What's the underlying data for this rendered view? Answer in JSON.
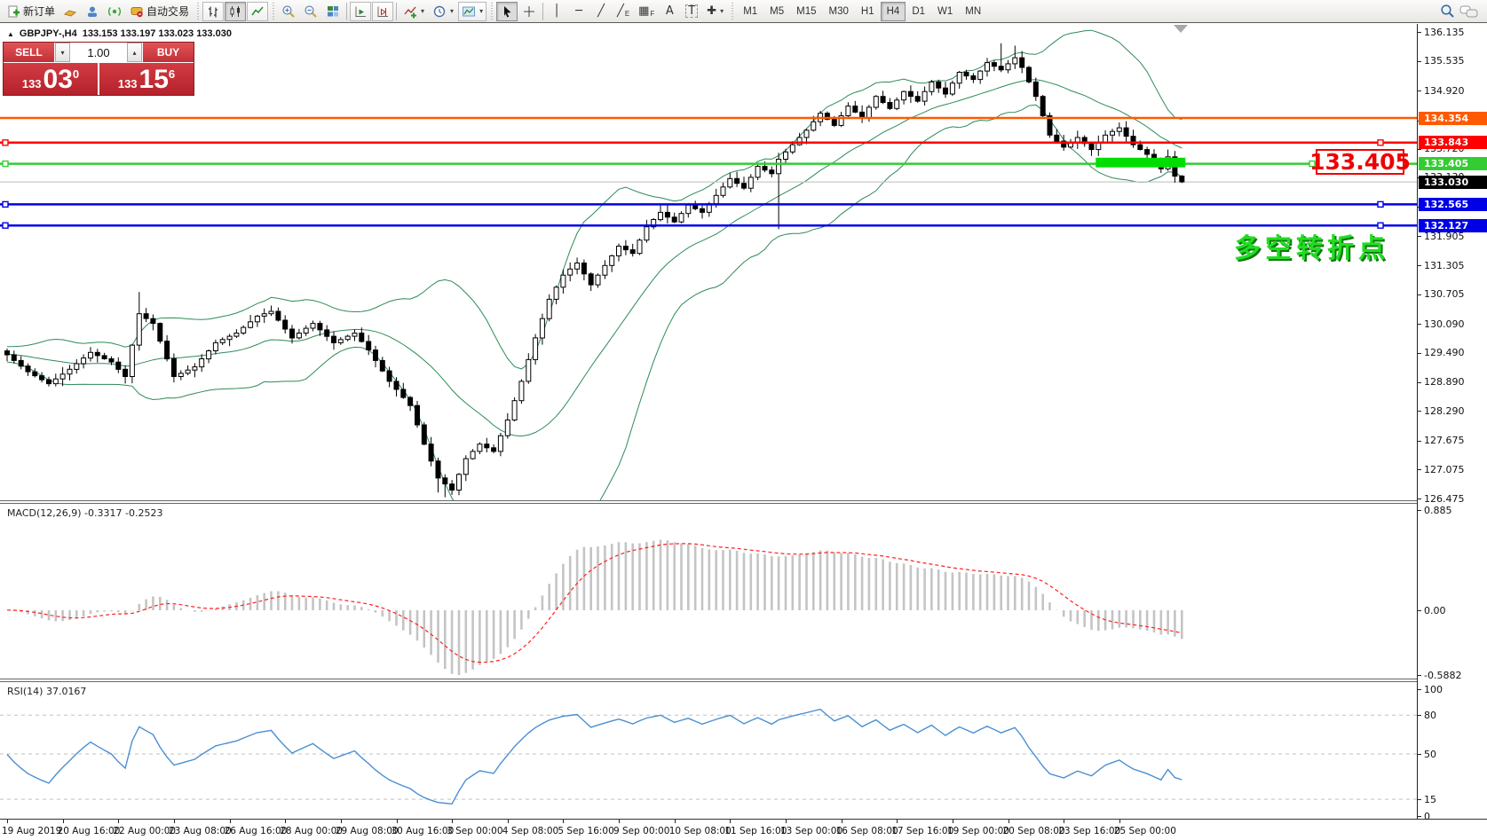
{
  "toolbar": {
    "new_order_label": "新订单",
    "autotrading_label": "自动交易",
    "timeframes": [
      "M1",
      "M5",
      "M15",
      "M30",
      "H1",
      "H4",
      "D1",
      "W1",
      "MN"
    ],
    "active_timeframe": "H4"
  },
  "icons": {
    "collapse": "▲",
    "dropdown": "▾",
    "spin_up": "▴",
    "spin_down": "▾",
    "crosshair": "+",
    "vline": "│",
    "hline": "─",
    "trendline": "╱",
    "channel": "╱",
    "channel_sub": "E",
    "fibo": "▦",
    "fibo_sub": "F",
    "text_tool": "A",
    "label_tool": "T",
    "arrows_tool": "✚"
  },
  "symbol_header": {
    "title": "GBPJPY-,H4",
    "ohlc": "133.153 133.197 133.023 133.030"
  },
  "trade_panel": {
    "sell_label": "SELL",
    "buy_label": "BUY",
    "volume": "1.00",
    "sell_price_prefix": "133",
    "sell_price_main": "03",
    "sell_price_sup": "0",
    "buy_price_prefix": "133",
    "buy_price_main": "15",
    "buy_price_sup": "6"
  },
  "annotations": {
    "price_callout": "133.405",
    "note_cn": "多空转折点",
    "note_color": "#22dd22"
  },
  "macd_panel": {
    "label": "MACD(12,26,9) -0.3317 -0.2523",
    "axis_labels": [
      "0.885",
      "0.00",
      "-0.5882"
    ]
  },
  "rsi_panel": {
    "label": "RSI(14) 37.0167",
    "axis_labels": [
      "100",
      "80",
      "50",
      "15",
      "0"
    ]
  },
  "chart_data": {
    "type": "candlestick",
    "symbol": "GBPJPY",
    "timeframe": "H4",
    "last_ohlc": [
      133.153,
      133.197,
      133.023,
      133.03
    ],
    "y_range": [
      126.475,
      136.135
    ],
    "price_axis_ticks": [
      136.135,
      135.535,
      134.92,
      134.305,
      133.72,
      133.13,
      132.52,
      131.905,
      131.305,
      130.705,
      130.09,
      129.49,
      128.89,
      128.29,
      127.675,
      127.075,
      126.475
    ],
    "candle_count": 170,
    "close_waypoints": [
      [
        0,
        129.45
      ],
      [
        3,
        129.1
      ],
      [
        6,
        128.85
      ],
      [
        9,
        129.15
      ],
      [
        12,
        129.5
      ],
      [
        15,
        129.3
      ],
      [
        17,
        129.0
      ],
      [
        19,
        130.3
      ],
      [
        21,
        130.1
      ],
      [
        24,
        129.0
      ],
      [
        27,
        129.2
      ],
      [
        30,
        129.7
      ],
      [
        33,
        129.9
      ],
      [
        36,
        130.25
      ],
      [
        38,
        130.35
      ],
      [
        41,
        129.8
      ],
      [
        44,
        130.1
      ],
      [
        47,
        129.7
      ],
      [
        50,
        129.9
      ],
      [
        52,
        129.55
      ],
      [
        55,
        128.9
      ],
      [
        58,
        128.4
      ],
      [
        60,
        127.6
      ],
      [
        62,
        126.9
      ],
      [
        64,
        126.65
      ],
      [
        66,
        127.3
      ],
      [
        68,
        127.6
      ],
      [
        70,
        127.45
      ],
      [
        72,
        128.1
      ],
      [
        74,
        128.9
      ],
      [
        76,
        129.8
      ],
      [
        78,
        130.6
      ],
      [
        80,
        131.1
      ],
      [
        82,
        131.35
      ],
      [
        84,
        130.9
      ],
      [
        86,
        131.3
      ],
      [
        88,
        131.7
      ],
      [
        90,
        131.55
      ],
      [
        92,
        132.1
      ],
      [
        94,
        132.4
      ],
      [
        96,
        132.2
      ],
      [
        98,
        132.55
      ],
      [
        100,
        132.4
      ],
      [
        102,
        132.75
      ],
      [
        104,
        133.1
      ],
      [
        106,
        132.9
      ],
      [
        108,
        133.35
      ],
      [
        110,
        133.2
      ],
      [
        111,
        133.5
      ],
      [
        113,
        133.8
      ],
      [
        115,
        134.1
      ],
      [
        117,
        134.45
      ],
      [
        119,
        134.2
      ],
      [
        121,
        134.6
      ],
      [
        123,
        134.35
      ],
      [
        125,
        134.8
      ],
      [
        127,
        134.55
      ],
      [
        129,
        134.9
      ],
      [
        131,
        134.7
      ],
      [
        133,
        135.1
      ],
      [
        135,
        134.85
      ],
      [
        137,
        135.3
      ],
      [
        139,
        135.15
      ],
      [
        141,
        135.5
      ],
      [
        143,
        135.35
      ],
      [
        145,
        135.6
      ],
      [
        146,
        135.4
      ],
      [
        148,
        134.8
      ],
      [
        150,
        134.0
      ],
      [
        152,
        133.75
      ],
      [
        154,
        133.95
      ],
      [
        156,
        133.7
      ],
      [
        158,
        134.0
      ],
      [
        160,
        134.15
      ],
      [
        162,
        133.8
      ],
      [
        164,
        133.6
      ],
      [
        165,
        133.45
      ],
      [
        166,
        133.3
      ],
      [
        167,
        133.55
      ],
      [
        168,
        133.15
      ],
      [
        169,
        133.03
      ]
    ],
    "wick_overrides": {
      "19": {
        "h": 130.75
      },
      "62": {
        "l": 126.6
      },
      "63": {
        "l": 126.5
      },
      "64": {
        "l": 126.55
      },
      "111": {
        "l": 132.05
      },
      "143": {
        "h": 135.9
      },
      "145": {
        "h": 135.85
      }
    },
    "indicators": {
      "bollinger": {
        "period": 20,
        "deviation": 2,
        "color": "#2e8b57"
      },
      "macd": {
        "fast": 12,
        "slow": 26,
        "signal": 9,
        "values": [
          -0.3317,
          -0.2523
        ],
        "axis": [
          0.885,
          0.0,
          -0.5882
        ],
        "bar_color": "#c4c4c4",
        "signal_color": "#ff2020"
      },
      "rsi": {
        "period": 14,
        "value": 37.0167,
        "levels": [
          80,
          50,
          15
        ],
        "color": "#4a8fd3"
      }
    },
    "h_lines": [
      {
        "price": 134.354,
        "label": "134.354",
        "color": "#ff5a00",
        "handles": false
      },
      {
        "price": 133.843,
        "label": "133.843",
        "color": "#ff0000",
        "handles": true
      },
      {
        "price": 133.405,
        "label": "133.405",
        "color": "#33cc33",
        "handles": true
      },
      {
        "price": 133.03,
        "label": "133.030",
        "color": "#c8c8c8",
        "label_bg": "#000000",
        "current": true
      },
      {
        "price": 132.565,
        "label": "132.565",
        "color": "#0000e6",
        "handles": true
      },
      {
        "price": 132.127,
        "label": "132.127",
        "color": "#0000e6",
        "handles": true
      }
    ],
    "highlight_rect": {
      "start_candle": 157,
      "end_candle": 169,
      "price_top": 133.53,
      "price_bottom": 133.33,
      "color": "#00dd00"
    },
    "time_labels": [
      "19 Aug 2019",
      "20 Aug 16:00",
      "22 Aug 00:00",
      "23 Aug 08:00",
      "26 Aug 16:00",
      "28 Aug 00:00",
      "29 Aug 08:00",
      "30 Aug 16:00",
      "3 Sep 00:00",
      "4 Sep 08:00",
      "5 Sep 16:00",
      "9 Sep 00:00",
      "10 Sep 08:00",
      "11 Sep 16:00",
      "13 Sep 00:00",
      "16 Sep 08:00",
      "17 Sep 16:00",
      "19 Sep 00:00",
      "20 Sep 08:00",
      "23 Sep 16:00",
      "25 Sep 00:00"
    ],
    "label_every_candles": 8
  }
}
